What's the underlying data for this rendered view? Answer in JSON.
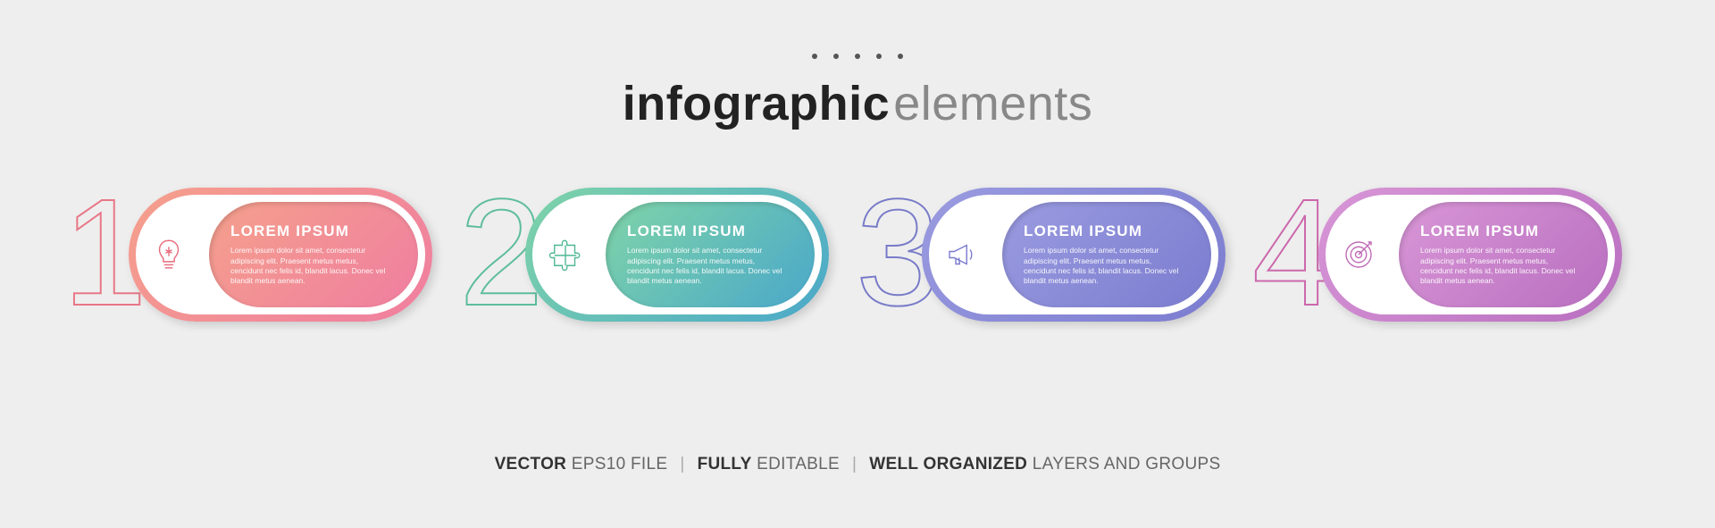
{
  "background_color": "#eeeeee",
  "header": {
    "dot_count": 5,
    "dot_color": "#555555",
    "title_bold": "infographic",
    "title_light": "elements",
    "title_bold_color": "#222222",
    "title_light_color": "#888888",
    "title_fontsize": 54
  },
  "layout": {
    "type": "infographic",
    "step_count": 4,
    "pill_width": 340,
    "pill_height": 150,
    "pill_radius": 80,
    "inner_pill_height": 118,
    "big_number_fontsize": 170,
    "big_number_stroke": 2,
    "step_title_fontsize": 17,
    "step_body_fontsize": 8.5
  },
  "steps": [
    {
      "number": "1",
      "number_color": "#e86b7c",
      "gradient_from": "#f5a08c",
      "gradient_to": "#ef7ea0",
      "icon": "lightbulb",
      "icon_color": "#e86b7c",
      "title": "LOREM IPSUM",
      "body": "Lorem ipsum dolor sit amet, consectetur adipiscing elit. Praesent metus metus, cencidunt nec felis id, blandit lacus. Donec vel blandit metus aenean."
    },
    {
      "number": "2",
      "number_color": "#4fb894",
      "gradient_from": "#7fd4a8",
      "gradient_to": "#4aa8c9",
      "icon": "puzzle",
      "icon_color": "#4fb894",
      "title": "LOREM IPSUM",
      "body": "Lorem ipsum dolor sit amet, consectetur adipiscing elit. Praesent metus metus, cencidunt nec felis id, blandit lacus. Donec vel blandit metus aenean."
    },
    {
      "number": "3",
      "number_color": "#6c6fc4",
      "gradient_from": "#9a9be0",
      "gradient_to": "#7b7ccf",
      "icon": "megaphone",
      "icon_color": "#7b7ccf",
      "title": "LOREM IPSUM",
      "body": "Lorem ipsum dolor sit amet, consectetur adipiscing elit. Praesent metus metus, cencidunt nec felis id, blandit lacus. Donec vel blandit metus aenean."
    },
    {
      "number": "4",
      "number_color": "#c85aa5",
      "gradient_from": "#d896d6",
      "gradient_to": "#b96fc0",
      "icon": "target",
      "icon_color": "#c06bb5",
      "title": "LOREM IPSUM",
      "body": "Lorem ipsum dolor sit amet, consectetur adipiscing elit. Praesent metus metus, cencidunt nec felis id, blandit lacus. Donec vel blandit metus aenean."
    }
  ],
  "footer": {
    "parts": [
      {
        "bold": "VECTOR",
        "light": " EPS10 FILE"
      },
      {
        "bold": "FULLY",
        "light": " EDITABLE"
      },
      {
        "bold": "WELL ORGANIZED",
        "light": " LAYERS AND GROUPS"
      }
    ],
    "separator": "|",
    "bold_color": "#333333",
    "light_color": "#666666",
    "fontsize": 19
  }
}
